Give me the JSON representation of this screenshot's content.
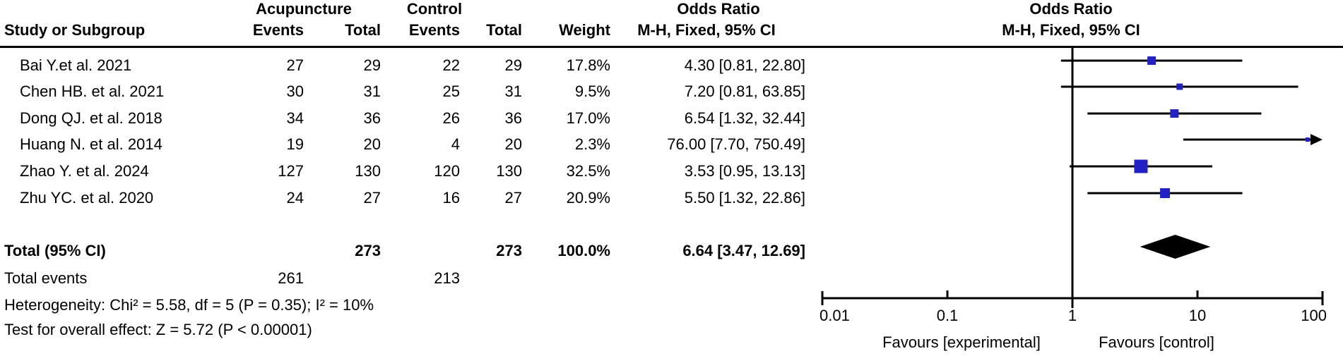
{
  "table": {
    "group1_header": "Acupuncture",
    "group2_header": "Control",
    "or_header_left": "Odds Ratio",
    "or_header_right": "Odds Ratio",
    "columns": {
      "study": "Study or Subgroup",
      "events1": "Events",
      "total1": "Total",
      "events2": "Events",
      "total2": "Total",
      "weight": "Weight",
      "ci": "M-H, Fixed, 95% CI",
      "ci_plot": "M-H, Fixed, 95% CI"
    },
    "rows": [
      {
        "study": "Bai Y.et al. 2021",
        "e1": "27",
        "t1": "29",
        "e2": "22",
        "t2": "29",
        "weight": "17.8%",
        "ci": "4.30 [0.81, 22.80]"
      },
      {
        "study": "Chen HB. et al. 2021",
        "e1": "30",
        "t1": "31",
        "e2": "25",
        "t2": "31",
        "weight": "9.5%",
        "ci": "7.20 [0.81, 63.85]"
      },
      {
        "study": "Dong QJ. et al. 2018",
        "e1": "34",
        "t1": "36",
        "e2": "26",
        "t2": "36",
        "weight": "17.0%",
        "ci": "6.54 [1.32, 32.44]"
      },
      {
        "study": "Huang N. et al. 2014",
        "e1": "19",
        "t1": "20",
        "e2": "4",
        "t2": "20",
        "weight": "2.3%",
        "ci": "76.00 [7.70, 750.49]"
      },
      {
        "study": "Zhao Y. et al. 2024",
        "e1": "127",
        "t1": "130",
        "e2": "120",
        "t2": "130",
        "weight": "32.5%",
        "ci": "3.53 [0.95, 13.13]"
      },
      {
        "study": "Zhu YC. et al. 2020",
        "e1": "24",
        "t1": "27",
        "e2": "16",
        "t2": "27",
        "weight": "20.9%",
        "ci": "5.50 [1.32, 22.86]"
      }
    ],
    "total_row": {
      "label": "Total (95% CI)",
      "t1": "273",
      "t2": "273",
      "weight": "100.0%",
      "ci": "6.64 [3.47, 12.69]"
    },
    "total_events": {
      "label": "Total events",
      "e1": "261",
      "e2": "213"
    },
    "heterogeneity": "Heterogeneity: Chi² = 5.58, df = 5 (P = 0.35); I² = 10%",
    "overall_effect": "Test for overall effect: Z = 5.72 (P < 0.00001)"
  },
  "chart_data": {
    "type": "forest",
    "x_scale": "log10",
    "x_range": [
      0.01,
      100
    ],
    "axis_ticks": [
      "0.01",
      "0.1",
      "1",
      "10",
      "100"
    ],
    "null_line": 1,
    "effect_measure": "Odds Ratio, M-H, Fixed, 95% CI",
    "favours_left": "Favours [experimental]",
    "favours_right": "Favours [control]",
    "studies": [
      {
        "name": "Bai Y.et al. 2021",
        "or": 4.3,
        "ci_low": 0.81,
        "ci_high": 22.8,
        "weight": 17.8
      },
      {
        "name": "Chen HB. et al. 2021",
        "or": 7.2,
        "ci_low": 0.81,
        "ci_high": 63.85,
        "weight": 9.5
      },
      {
        "name": "Dong QJ. et al. 2018",
        "or": 6.54,
        "ci_low": 1.32,
        "ci_high": 32.44,
        "weight": 17.0
      },
      {
        "name": "Huang N. et al. 2014",
        "or": 76.0,
        "ci_low": 7.7,
        "ci_high": 750.49,
        "weight": 2.3
      },
      {
        "name": "Zhao Y. et al. 2024",
        "or": 3.53,
        "ci_low": 0.95,
        "ci_high": 13.13,
        "weight": 32.5
      },
      {
        "name": "Zhu YC. et al. 2020",
        "or": 5.5,
        "ci_low": 1.32,
        "ci_high": 22.86,
        "weight": 20.9
      }
    ],
    "total": {
      "or": 6.64,
      "ci_low": 3.47,
      "ci_high": 12.69
    },
    "marker_color": "#2222c4",
    "line_color": "#000000"
  }
}
